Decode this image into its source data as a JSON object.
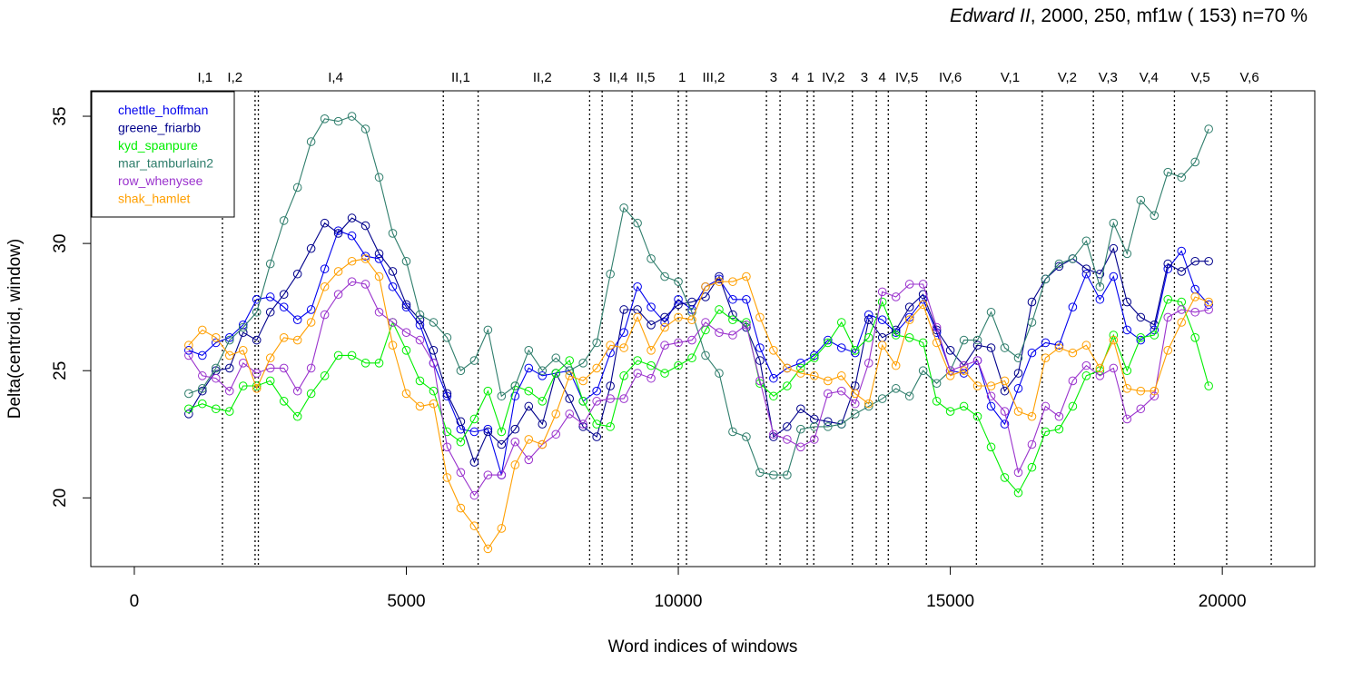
{
  "title": {
    "italic": "Edward II",
    "rest": ", 2000, 250, mf1w ( 153)   n=70 %"
  },
  "chart_data": {
    "type": "line",
    "xlabel": "Word indices of windows",
    "ylabel": "Delta(centroid, window)",
    "xlim": [
      -800,
      21700
    ],
    "ylim": [
      17.3,
      36
    ],
    "xticks": [
      0,
      5000,
      10000,
      15000,
      20000
    ],
    "xtick_labels": [
      "0",
      "5000",
      "10000",
      "15000",
      "20000"
    ],
    "yticks": [
      20,
      25,
      30,
      35
    ],
    "ytick_labels": [
      "20",
      "25",
      "30",
      "35"
    ],
    "legend_position": "top-left",
    "grid": false,
    "act_boundaries": [
      1620,
      2220,
      2280,
      5680,
      6320,
      8370,
      8600,
      9150,
      10000,
      10150,
      11620,
      11870,
      12370,
      12490,
      13200,
      13640,
      13860,
      14560,
      15480,
      16690,
      17630,
      18170,
      19120,
      20080,
      20900
    ],
    "scene_labels": [
      {
        "label": "I,1",
        "x": 1300
      },
      {
        "label": "I,2",
        "x": 1850
      },
      {
        "label": "I,4",
        "x": 3700
      },
      {
        "label": "II,1",
        "x": 6000
      },
      {
        "label": "II,2",
        "x": 7500
      },
      {
        "label": "3",
        "x": 8500
      },
      {
        "label": "II,4",
        "x": 8900
      },
      {
        "label": "II,5",
        "x": 9400
      },
      {
        "label": "1",
        "x": 10070
      },
      {
        "label": "III,2",
        "x": 10650
      },
      {
        "label": "3",
        "x": 11750
      },
      {
        "label": "4",
        "x": 12150
      },
      {
        "label": "1",
        "x": 12430
      },
      {
        "label": "IV,2",
        "x": 12850
      },
      {
        "label": "3",
        "x": 13420
      },
      {
        "label": "4",
        "x": 13750
      },
      {
        "label": "IV,5",
        "x": 14200
      },
      {
        "label": "IV,6",
        "x": 15000
      },
      {
        "label": "V,1",
        "x": 16100
      },
      {
        "label": "V,2",
        "x": 17150
      },
      {
        "label": "V,3",
        "x": 17900
      },
      {
        "label": "V,4",
        "x": 18650
      },
      {
        "label": "V,5",
        "x": 19600
      },
      {
        "label": "V,6",
        "x": 20500
      }
    ],
    "x": [
      1000,
      1250,
      1500,
      1750,
      2000,
      2250,
      2500,
      2750,
      3000,
      3250,
      3500,
      3750,
      4000,
      4250,
      4500,
      4750,
      5000,
      5250,
      5500,
      5750,
      6000,
      6250,
      6500,
      6750,
      7000,
      7250,
      7500,
      7750,
      8000,
      8250,
      8500,
      8750,
      9000,
      9250,
      9500,
      9750,
      10000,
      10250,
      10500,
      10750,
      11000,
      11250,
      11500,
      11750,
      12000,
      12250,
      12500,
      12750,
      13000,
      13250,
      13500,
      13750,
      14000,
      14250,
      14500,
      14750,
      15000,
      15250,
      15500,
      15750,
      16000,
      16250,
      16500,
      16750,
      17000,
      17250,
      17500,
      17750,
      18000,
      18250,
      18500,
      18750,
      19000,
      19250,
      19500,
      19750
    ],
    "series": [
      {
        "name": "chettle_hoffman",
        "color": "#0000ee",
        "values": [
          25.8,
          25.6,
          26.1,
          26.3,
          26.8,
          27.8,
          27.9,
          27.5,
          27.0,
          27.4,
          29.0,
          30.5,
          30.3,
          29.5,
          29.4,
          28.3,
          27.5,
          26.8,
          25.3,
          24.0,
          22.7,
          22.6,
          22.7,
          20.9,
          24.0,
          25.1,
          24.8,
          24.9,
          25.0,
          23.8,
          24.2,
          25.7,
          26.5,
          28.3,
          27.5,
          26.9,
          27.8,
          27.4,
          28.3,
          28.6,
          27.8,
          27.8,
          25.9,
          24.7,
          25.1,
          25.3,
          25.6,
          26.2,
          25.9,
          25.7,
          27.2,
          27.0,
          26.5,
          27.1,
          27.8,
          26.5,
          25.0,
          24.9,
          25.4,
          23.6,
          22.9,
          24.3,
          25.7,
          26.1,
          26.0,
          27.5,
          28.8,
          27.8,
          28.7,
          26.6,
          26.2,
          26.6,
          29.0,
          29.7,
          28.2,
          27.6
        ]
      },
      {
        "name": "greene_friarbb",
        "color": "#00008b",
        "values": [
          23.3,
          24.2,
          25.0,
          25.1,
          26.5,
          26.2,
          27.3,
          28.0,
          28.8,
          29.8,
          30.8,
          30.4,
          31.0,
          30.7,
          29.6,
          28.9,
          27.6,
          27.0,
          25.8,
          24.1,
          23.0,
          21.4,
          22.6,
          22.1,
          22.7,
          23.6,
          22.9,
          24.9,
          23.9,
          22.8,
          22.4,
          24.4,
          27.4,
          27.4,
          26.8,
          27.1,
          27.6,
          27.7,
          27.9,
          28.7,
          27.2,
          26.7,
          25.4,
          22.4,
          22.8,
          23.5,
          23.1,
          23.0,
          22.9,
          24.4,
          27.0,
          26.3,
          26.6,
          27.5,
          28.0,
          26.6,
          25.8,
          25.2,
          26.0,
          25.9,
          24.2,
          24.9,
          27.7,
          28.6,
          29.1,
          29.4,
          29.0,
          28.8,
          29.8,
          27.7,
          27.1,
          26.8,
          29.2,
          28.9,
          29.3,
          29.3
        ]
      },
      {
        "name": "kyd_spanpure",
        "color": "#00ee00",
        "values": [
          23.5,
          23.7,
          23.5,
          23.4,
          24.4,
          24.4,
          24.6,
          23.8,
          23.2,
          24.1,
          24.8,
          25.6,
          25.6,
          25.3,
          25.3,
          26.9,
          25.8,
          24.6,
          24.2,
          22.6,
          22.2,
          23.1,
          24.2,
          22.6,
          24.4,
          24.2,
          23.8,
          24.9,
          25.4,
          23.8,
          22.9,
          22.8,
          24.8,
          25.4,
          25.2,
          24.9,
          25.2,
          25.5,
          26.6,
          27.4,
          27.0,
          26.9,
          24.5,
          24.0,
          24.4,
          25.1,
          25.5,
          26.1,
          26.9,
          25.8,
          26.3,
          27.7,
          26.4,
          26.3,
          26.1,
          23.8,
          23.4,
          23.6,
          23.2,
          22.0,
          20.8,
          20.2,
          21.2,
          22.6,
          22.7,
          23.6,
          24.8,
          25.0,
          26.4,
          25.0,
          26.3,
          26.4,
          27.8,
          27.7,
          26.3,
          24.4
        ]
      },
      {
        "name": "mar_tamburlain2",
        "color": "#2e7d6b",
        "values": [
          24.1,
          24.3,
          25.1,
          26.2,
          26.7,
          27.3,
          29.2,
          30.9,
          32.2,
          34.0,
          34.9,
          34.8,
          35.0,
          34.5,
          32.6,
          30.4,
          29.3,
          27.2,
          26.9,
          26.3,
          25.0,
          25.4,
          26.6,
          24.0,
          24.4,
          25.8,
          25.0,
          25.5,
          25.0,
          25.3,
          26.1,
          28.8,
          31.4,
          30.8,
          29.4,
          28.7,
          28.5,
          27.3,
          25.6,
          24.9,
          22.6,
          22.4,
          21.0,
          20.9,
          20.9,
          22.7,
          22.8,
          22.8,
          22.9,
          23.3,
          23.6,
          23.9,
          24.3,
          24.0,
          25.0,
          24.5,
          25.0,
          26.2,
          26.2,
          27.3,
          25.9,
          25.5,
          26.9,
          28.6,
          29.2,
          29.4,
          30.1,
          28.3,
          30.8,
          29.6,
          31.7,
          31.1,
          32.8,
          32.6,
          33.2,
          34.5
        ]
      },
      {
        "name": "row_whenysee",
        "color": "#9a32cd",
        "values": [
          25.6,
          24.8,
          24.7,
          24.2,
          25.3,
          24.9,
          25.1,
          25.1,
          24.2,
          25.1,
          27.2,
          28.0,
          28.5,
          28.4,
          27.3,
          26.9,
          26.5,
          26.2,
          25.3,
          22.0,
          21.0,
          20.1,
          20.9,
          20.9,
          22.2,
          21.5,
          22.1,
          22.5,
          23.3,
          22.9,
          23.8,
          23.9,
          23.9,
          24.9,
          24.7,
          26.0,
          26.1,
          26.2,
          26.9,
          26.5,
          26.4,
          26.8,
          24.6,
          22.5,
          22.3,
          22.0,
          22.3,
          24.1,
          24.2,
          23.7,
          25.3,
          28.1,
          27.9,
          28.4,
          28.4,
          26.7,
          25.0,
          25.2,
          25.4,
          24.0,
          23.4,
          21.0,
          22.1,
          23.6,
          23.2,
          24.6,
          25.2,
          24.8,
          25.1,
          23.1,
          23.5,
          24.0,
          27.1,
          27.4,
          27.3,
          27.4
        ]
      },
      {
        "name": "shak_hamlet",
        "color": "#ff9f00",
        "values": [
          26.0,
          26.6,
          26.3,
          25.6,
          25.8,
          24.3,
          25.5,
          26.3,
          26.2,
          26.9,
          28.3,
          28.9,
          29.3,
          29.4,
          28.7,
          26.0,
          24.1,
          23.6,
          23.7,
          20.8,
          19.6,
          18.9,
          18.0,
          18.8,
          21.3,
          22.3,
          22.1,
          23.3,
          24.8,
          24.6,
          25.1,
          26.0,
          25.9,
          27.1,
          25.8,
          26.7,
          27.1,
          27.0,
          28.3,
          28.5,
          28.5,
          28.7,
          27.1,
          25.8,
          25.1,
          24.9,
          24.8,
          24.6,
          24.8,
          24.1,
          23.7,
          26.0,
          25.2,
          27.0,
          27.6,
          26.1,
          24.8,
          25.0,
          24.4,
          24.4,
          24.6,
          23.4,
          23.2,
          25.5,
          25.9,
          25.7,
          26.0,
          25.1,
          26.2,
          24.3,
          24.2,
          24.2,
          25.8,
          26.9,
          27.9,
          27.7
        ]
      }
    ]
  }
}
